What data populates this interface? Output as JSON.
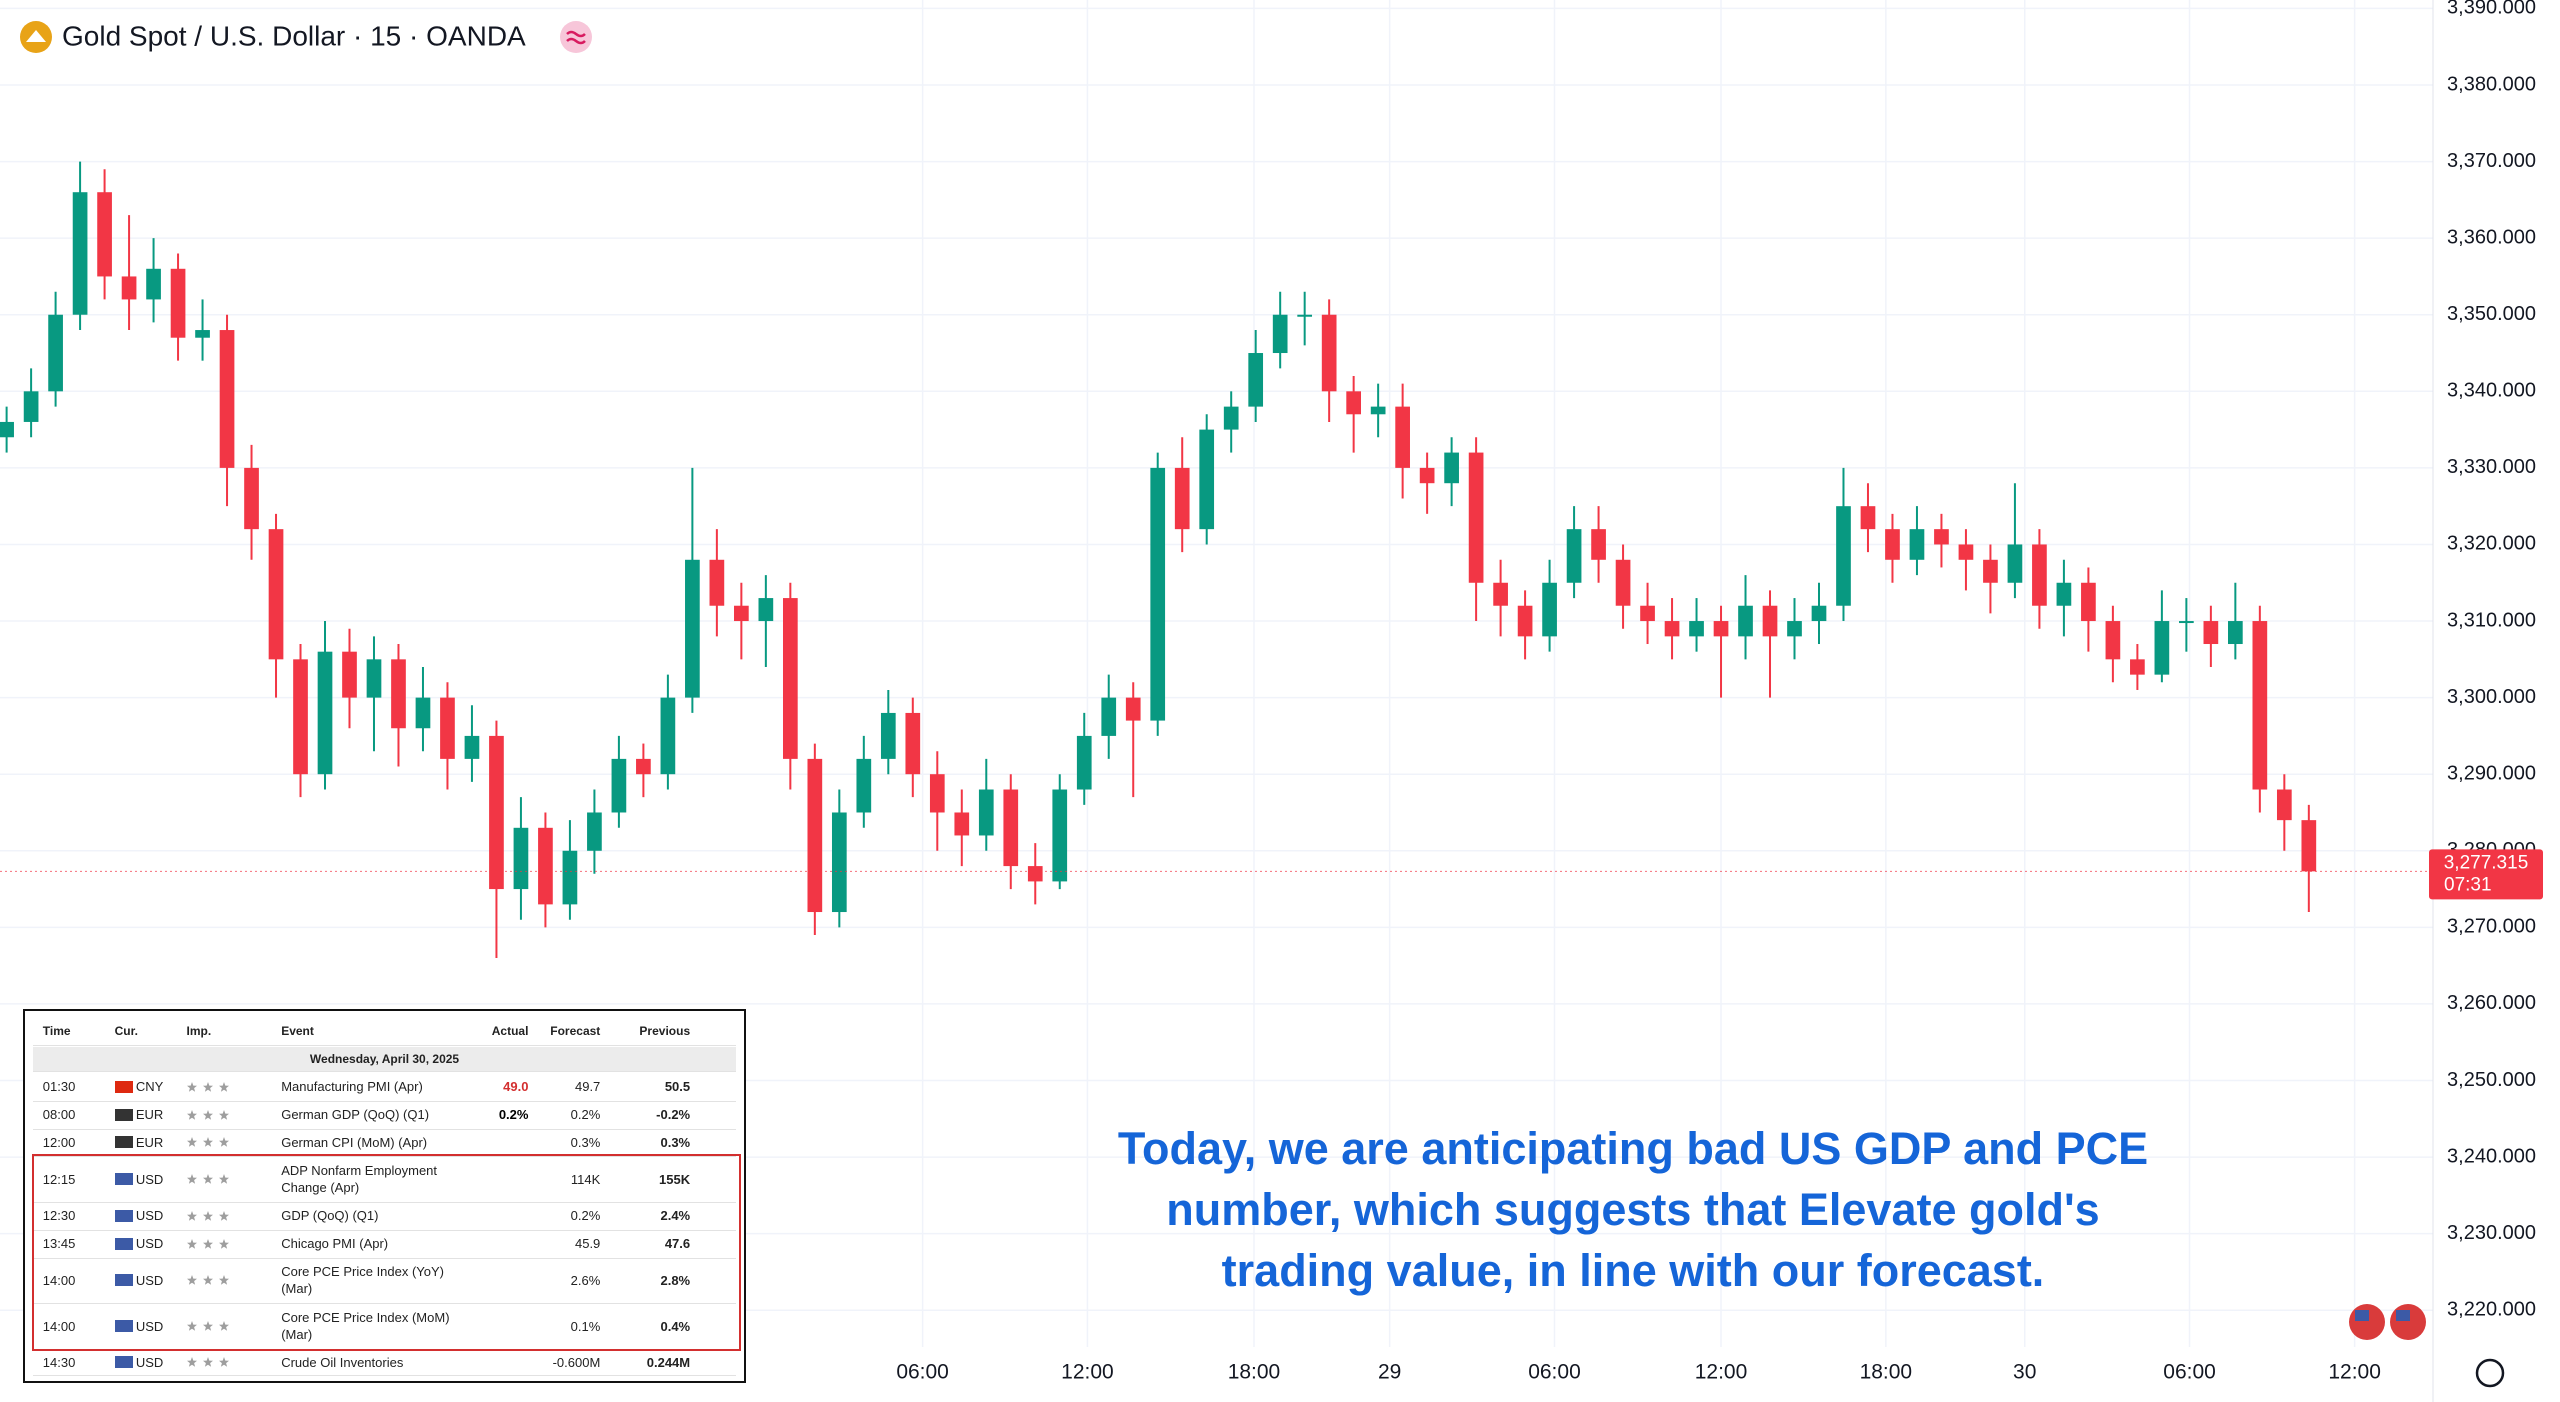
{
  "chart_data": {
    "type": "candlestick",
    "title": "Gold Spot / U.S. Dollar · 15 · OANDA",
    "up_color": "#089981",
    "down_color": "#f23645",
    "grid": true,
    "x": [
      0,
      1,
      2,
      3,
      4,
      5,
      6,
      7,
      8,
      9,
      10,
      11,
      12,
      13,
      14,
      15,
      16,
      17,
      18,
      19,
      20,
      21,
      22,
      23,
      24,
      25,
      26,
      27,
      28,
      29,
      30,
      31,
      32,
      33,
      34,
      35,
      36,
      37,
      38,
      39,
      40,
      41,
      42,
      43,
      44,
      45,
      46,
      47,
      48,
      49,
      50,
      51,
      52,
      53,
      54,
      55,
      56,
      57,
      58,
      59,
      60,
      61,
      62,
      63,
      64,
      65,
      66,
      67,
      68,
      69,
      70,
      71,
      72,
      73,
      74,
      75,
      76,
      77,
      78,
      79,
      80,
      81,
      82,
      83,
      84,
      85,
      86,
      87,
      88,
      89,
      90,
      91,
      92,
      93,
      94
    ],
    "open": [
      3334,
      3336,
      3340,
      3350,
      3366,
      3355,
      3352,
      3356,
      3347,
      3348,
      3330,
      3322,
      3305,
      3290,
      3306,
      3300,
      3305,
      3296,
      3300,
      3292,
      3295,
      3275,
      3283,
      3273,
      3280,
      3285,
      3292,
      3290,
      3300,
      3318,
      3312,
      3310,
      3313,
      3292,
      3272,
      3285,
      3292,
      3298,
      3290,
      3285,
      3282,
      3288,
      3278,
      3276,
      3288,
      3295,
      3300,
      3297,
      3330,
      3322,
      3335,
      3338,
      3345,
      3350,
      3350,
      3340,
      3337,
      3338,
      3330,
      3328,
      3332,
      3315,
      3312,
      3308,
      3315,
      3322,
      3318,
      3312,
      3310,
      3308,
      3310,
      3308,
      3312,
      3308,
      3310,
      3312,
      3325,
      3322,
      3318,
      3322,
      3320,
      3318,
      3315,
      3320,
      3312,
      3315,
      3310,
      3305,
      3303,
      3310,
      3310,
      3307,
      3310,
      3288,
      3284
    ],
    "high": [
      3338,
      3343,
      3353,
      3370,
      3369,
      3363,
      3360,
      3358,
      3352,
      3350,
      3333,
      3324,
      3307,
      3310,
      3309,
      3308,
      3307,
      3304,
      3302,
      3299,
      3297,
      3287,
      3285,
      3284,
      3288,
      3295,
      3294,
      3303,
      3330,
      3322,
      3315,
      3316,
      3315,
      3294,
      3288,
      3295,
      3301,
      3300,
      3293,
      3288,
      3292,
      3290,
      3281,
      3290,
      3298,
      3303,
      3302,
      3332,
      3334,
      3337,
      3340,
      3348,
      3353,
      3353,
      3352,
      3342,
      3341,
      3341,
      3332,
      3334,
      3334,
      3318,
      3314,
      3318,
      3325,
      3325,
      3320,
      3315,
      3313,
      3313,
      3312,
      3316,
      3314,
      3313,
      3315,
      3330,
      3328,
      3324,
      3325,
      3324,
      3322,
      3320,
      3328,
      3322,
      3318,
      3317,
      3312,
      3307,
      3314,
      3313,
      3312,
      3315,
      3312,
      3290,
      3286
    ],
    "low": [
      3332,
      3334,
      3338,
      3348,
      3352,
      3348,
      3349,
      3344,
      3344,
      3325,
      3318,
      3300,
      3287,
      3288,
      3296,
      3293,
      3291,
      3293,
      3288,
      3289,
      3266,
      3271,
      3270,
      3271,
      3277,
      3283,
      3287,
      3288,
      3298,
      3308,
      3305,
      3304,
      3288,
      3269,
      3270,
      3283,
      3290,
      3287,
      3280,
      3278,
      3280,
      3275,
      3273,
      3275,
      3286,
      3292,
      3287,
      3295,
      3319,
      3320,
      3332,
      3336,
      3343,
      3346,
      3336,
      3332,
      3334,
      3326,
      3324,
      3325,
      3310,
      3308,
      3305,
      3306,
      3313,
      3315,
      3309,
      3307,
      3305,
      3306,
      3300,
      3305,
      3300,
      3305,
      3307,
      3310,
      3319,
      3315,
      3316,
      3317,
      3314,
      3311,
      3313,
      3309,
      3308,
      3306,
      3302,
      3301,
      3302,
      3306,
      3304,
      3305,
      3285,
      3280,
      3272
    ],
    "close": [
      3336,
      3340,
      3350,
      3366,
      3355,
      3352,
      3356,
      3347,
      3348,
      3330,
      3322,
      3305,
      3290,
      3306,
      3300,
      3305,
      3296,
      3300,
      3292,
      3295,
      3275,
      3283,
      3273,
      3280,
      3285,
      3292,
      3290,
      3300,
      3318,
      3312,
      3310,
      3313,
      3292,
      3272,
      3285,
      3292,
      3298,
      3290,
      3285,
      3282,
      3288,
      3278,
      3276,
      3288,
      3295,
      3300,
      3297,
      3330,
      3322,
      3335,
      3338,
      3345,
      3350,
      3350,
      3340,
      3337,
      3338,
      3330,
      3328,
      3332,
      3315,
      3312,
      3308,
      3315,
      3322,
      3318,
      3312,
      3310,
      3308,
      3310,
      3308,
      3312,
      3308,
      3310,
      3312,
      3325,
      3322,
      3318,
      3322,
      3320,
      3318,
      3315,
      3320,
      3312,
      3315,
      3310,
      3305,
      3303,
      3310,
      3310,
      3307,
      3310,
      3288,
      3284,
      3277.315
    ],
    "last_price": {
      "value": 3277.315,
      "label": "3,277.315"
    },
    "countdown": "07:31",
    "xlim": [
      -0.27,
      99.07
    ],
    "xticks": [
      {
        "value": 37.4,
        "label": "06:00"
      },
      {
        "value": 44.13,
        "label": "12:00"
      },
      {
        "value": 50.93,
        "label": "18:00"
      },
      {
        "value": 56.47,
        "label": "29"
      },
      {
        "value": 63.2,
        "label": "06:00"
      },
      {
        "value": 70.0,
        "label": "12:00"
      },
      {
        "value": 76.73,
        "label": "18:00"
      },
      {
        "value": 82.4,
        "label": "30"
      },
      {
        "value": 89.13,
        "label": "06:00"
      },
      {
        "value": 95.87,
        "label": "12:00"
      }
    ],
    "ylim": [
      3215.2,
      3391.1
    ],
    "yticks": [
      {
        "value": 3220,
        "label": "3,220.000"
      },
      {
        "value": 3230,
        "label": "3,230.000"
      },
      {
        "value": 3240,
        "label": "3,240.000"
      },
      {
        "value": 3250,
        "label": "3,250.000"
      },
      {
        "value": 3260,
        "label": "3,260.000"
      },
      {
        "value": 3270,
        "label": "3,270.000"
      },
      {
        "value": 3280,
        "label": "3,280.000"
      },
      {
        "value": 3290,
        "label": "3,290.000"
      },
      {
        "value": 3300,
        "label": "3,300.000"
      },
      {
        "value": 3310,
        "label": "3,310.000"
      },
      {
        "value": 3320,
        "label": "3,320.000"
      },
      {
        "value": 3330,
        "label": "3,330.000"
      },
      {
        "value": 3340,
        "label": "3,340.000"
      },
      {
        "value": 3350,
        "label": "3,350.000"
      },
      {
        "value": 3360,
        "label": "3,360.000"
      },
      {
        "value": 3370,
        "label": "3,370.000"
      },
      {
        "value": 3380,
        "label": "3,380.000"
      },
      {
        "value": 3390,
        "label": "3,390.000"
      }
    ],
    "annotation": "Today, we are anticipating bad US GDP and PCE number, which suggests that Elevate gold's trading value, in line with our forecast."
  },
  "calendar": {
    "columns": [
      "Time",
      "Cur.",
      "Imp.",
      "Event",
      "Actual",
      "Forecast",
      "Previous"
    ],
    "date": "Wednesday, April 30, 2025",
    "rows": [
      {
        "time": "01:30",
        "currency": "CNY",
        "flag_color": "#de2910",
        "event": "Manufacturing PMI (Apr)",
        "actual": "49.0",
        "actual_color": "#d32f2f",
        "forecast": "49.7",
        "previous": "50.5",
        "highlight": false
      },
      {
        "time": "08:00",
        "currency": "EUR",
        "flag_color": "#333333",
        "event": "German GDP (QoQ) (Q1)",
        "actual": "0.2%",
        "actual_color": "#000000",
        "forecast": "0.2%",
        "previous": "-0.2%",
        "highlight": false
      },
      {
        "time": "12:00",
        "currency": "EUR",
        "flag_color": "#333333",
        "event": "German CPI (MoM) (Apr)",
        "actual": null,
        "actual_color": "#000000",
        "forecast": "0.3%",
        "previous": "0.3%",
        "highlight": false
      },
      {
        "time": "12:15",
        "currency": "USD",
        "flag_color": "#3c5aa6",
        "event": "ADP Nonfarm Employment Change (Apr)",
        "actual": null,
        "actual_color": "#000000",
        "forecast": "114K",
        "previous": "155K",
        "highlight": true
      },
      {
        "time": "12:30",
        "currency": "USD",
        "flag_color": "#3c5aa6",
        "event": "GDP (QoQ) (Q1)",
        "actual": null,
        "actual_color": "#000000",
        "forecast": "0.2%",
        "previous": "2.4%",
        "highlight": true
      },
      {
        "time": "13:45",
        "currency": "USD",
        "flag_color": "#3c5aa6",
        "event": "Chicago PMI (Apr)",
        "actual": null,
        "actual_color": "#000000",
        "forecast": "45.9",
        "previous": "47.6",
        "highlight": true
      },
      {
        "time": "14:00",
        "currency": "USD",
        "flag_color": "#3c5aa6",
        "event": "Core PCE Price Index (YoY) (Mar)",
        "actual": null,
        "actual_color": "#000000",
        "forecast": "2.6%",
        "previous": "2.8%",
        "highlight": true
      },
      {
        "time": "14:00",
        "currency": "USD",
        "flag_color": "#3c5aa6",
        "event": "Core PCE Price Index (MoM) (Mar)",
        "actual": null,
        "actual_color": "#000000",
        "forecast": "0.1%",
        "previous": "0.4%",
        "highlight": true
      },
      {
        "time": "14:30",
        "currency": "USD",
        "flag_color": "#3c5aa6",
        "event": "Crude Oil Inventories",
        "actual": null,
        "actual_color": "#000000",
        "forecast": "-0.600M",
        "previous": "0.244M",
        "highlight": false
      }
    ]
  }
}
